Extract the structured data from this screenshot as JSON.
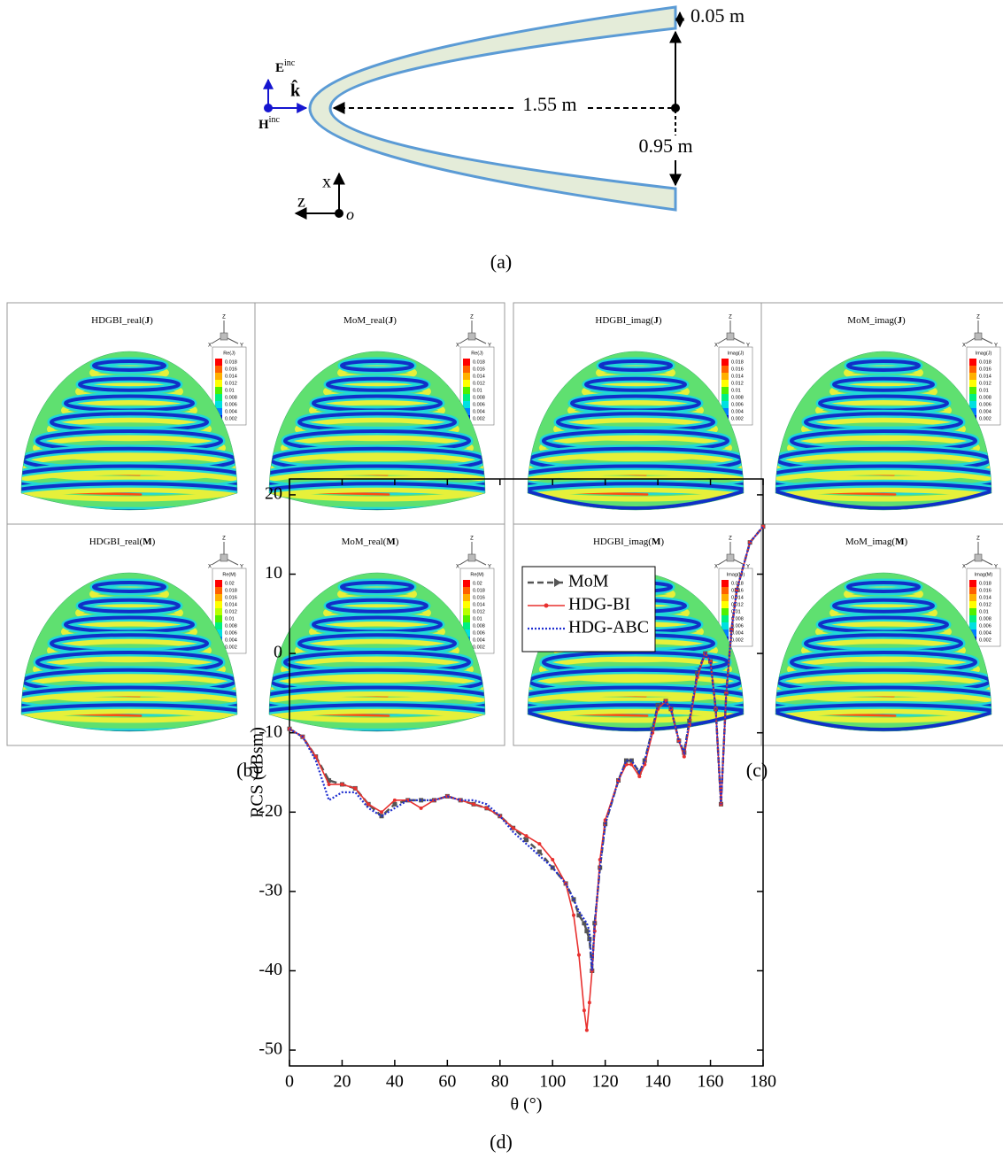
{
  "panel_a": {
    "caption": "(a)",
    "thickness": "0.05 m",
    "length": "1.55 m",
    "radius": "0.95 m",
    "axis_x": "x",
    "axis_z": "z",
    "origin": "o",
    "e_field": {
      "symbol": "E",
      "sup": "inc"
    },
    "h_field": {
      "symbol": "H",
      "sup": "inc"
    },
    "wave_vector": "k̂"
  },
  "triad": {
    "z": "Z",
    "x": "X",
    "y": "Y"
  },
  "panel_b": {
    "caption": "(b)",
    "panels": [
      {
        "title": {
          "name": "HDGBI_real(",
          "bold": "J",
          "end": ")"
        },
        "legend_title": "Re(J)",
        "levels": [
          0.018,
          0.016,
          0.014,
          0.012,
          0.01,
          0.008,
          0.006,
          0.004,
          0.002
        ]
      },
      {
        "title": {
          "name": "MoM_real(",
          "bold": "J",
          "end": ")"
        },
        "legend_title": "Re(J)",
        "levels": [
          0.018,
          0.016,
          0.014,
          0.012,
          0.01,
          0.008,
          0.006,
          0.004,
          0.002
        ]
      },
      {
        "title": {
          "name": "HDGBI_real(",
          "bold": "M",
          "end": ")"
        },
        "legend_title": "Re(M)",
        "levels": [
          0.02,
          0.018,
          0.016,
          0.014,
          0.012,
          0.01,
          0.008,
          0.006,
          0.004,
          0.002
        ]
      },
      {
        "title": {
          "name": "MoM_real(",
          "bold": "M",
          "end": ")"
        },
        "legend_title": "Re(M)",
        "levels": [
          0.02,
          0.018,
          0.016,
          0.014,
          0.012,
          0.01,
          0.008,
          0.006,
          0.004,
          0.002
        ]
      }
    ]
  },
  "panel_c": {
    "caption": "(c)",
    "panels": [
      {
        "title": {
          "name": "HDGBI_imag(",
          "bold": "J",
          "end": ")"
        },
        "legend_title": "Imag(J)",
        "levels": [
          0.018,
          0.016,
          0.014,
          0.012,
          0.01,
          0.008,
          0.006,
          0.004,
          0.002
        ]
      },
      {
        "title": {
          "name": "MoM_imag(",
          "bold": "J",
          "end": ")"
        },
        "legend_title": "Imag(J)",
        "levels": [
          0.018,
          0.016,
          0.014,
          0.012,
          0.01,
          0.008,
          0.006,
          0.004,
          0.002
        ]
      },
      {
        "title": {
          "name": "HDGBI_imag(",
          "bold": "M",
          "end": ")"
        },
        "legend_title": "Imag(M)",
        "levels": [
          0.018,
          0.016,
          0.014,
          0.012,
          0.01,
          0.008,
          0.006,
          0.004,
          0.002
        ]
      },
      {
        "title": {
          "name": "MoM_imag(",
          "bold": "M",
          "end": ")"
        },
        "legend_title": "Imag(M)",
        "levels": [
          0.018,
          0.016,
          0.014,
          0.012,
          0.01,
          0.008,
          0.006,
          0.004,
          0.002
        ]
      }
    ]
  },
  "chart_data": {
    "type": "line",
    "caption": "(d)",
    "xlabel": "θ (°)",
    "ylabel": "RCS (dBsm)",
    "xlim": [
      0,
      180
    ],
    "xticks": [
      0,
      20,
      40,
      60,
      80,
      100,
      120,
      140,
      160,
      180
    ],
    "ylim": [
      -52,
      22
    ],
    "yticks": [
      -50,
      -40,
      -30,
      -20,
      -10,
      0,
      10,
      20
    ],
    "x": [
      0,
      5,
      10,
      15,
      20,
      25,
      30,
      35,
      40,
      45,
      50,
      55,
      60,
      65,
      70,
      75,
      80,
      85,
      90,
      95,
      100,
      105,
      108,
      110,
      112,
      113,
      114,
      115,
      116,
      118,
      120,
      125,
      128,
      130,
      133,
      135,
      138,
      140,
      143,
      145,
      148,
      150,
      152,
      155,
      158,
      160,
      162,
      164,
      166,
      168,
      170,
      175,
      180
    ],
    "series": [
      {
        "name": "MoM",
        "color": "#555555",
        "values": [
          -9.5,
          -10.5,
          -13,
          -16,
          -16.5,
          -17,
          -19,
          -20.5,
          -19,
          -18.5,
          -18.5,
          -18.5,
          -18,
          -18.5,
          -19,
          -19.5,
          -20.5,
          -22,
          -23.5,
          -25,
          -27,
          -29,
          -31,
          -33,
          -34,
          -35,
          -36,
          -40,
          -34,
          -27,
          -21.5,
          -16,
          -13.5,
          -13.5,
          -15,
          -13.5,
          -9.5,
          -6.5,
          -6,
          -7,
          -11,
          -12.5,
          -8.5,
          -2.5,
          0,
          -1,
          -7,
          -19,
          -5,
          3,
          8,
          14,
          16
        ]
      },
      {
        "name": "HDG-BI",
        "color": "#e8312f",
        "values": [
          -9.5,
          -10.5,
          -13,
          -16.5,
          -16.5,
          -17,
          -19,
          -20,
          -18.5,
          -18.5,
          -19.5,
          -18.5,
          -18,
          -18.5,
          -19,
          -19.5,
          -20.5,
          -22,
          -23,
          -24,
          -26,
          -29,
          -33,
          -38,
          -45,
          -47.5,
          -44,
          -40,
          -35,
          -26,
          -21,
          -16,
          -14,
          -14,
          -15.5,
          -14,
          -10,
          -7,
          -6,
          -7,
          -11,
          -13,
          -9,
          -3,
          0,
          -1,
          -7,
          -19,
          -5,
          3,
          8,
          14,
          16
        ]
      },
      {
        "name": "HDG-ABC",
        "color": "#1f2fd0",
        "values": [
          -9.5,
          -10.5,
          -13.5,
          -18.5,
          -17.5,
          -17.5,
          -19.5,
          -20.5,
          -19.5,
          -18.5,
          -18.5,
          -18.5,
          -18,
          -18.5,
          -18.5,
          -19,
          -20.5,
          -22.5,
          -24,
          -25.5,
          -27,
          -29,
          -31,
          -32.5,
          -33.5,
          -34,
          -35,
          -40,
          -34,
          -27,
          -21.5,
          -16,
          -13.5,
          -13.5,
          -15,
          -13.5,
          -9.5,
          -6.5,
          -6,
          -7,
          -11,
          -12.5,
          -8.5,
          -2.5,
          0,
          -1,
          -7,
          -19,
          -5,
          3,
          8,
          14,
          16
        ]
      }
    ]
  }
}
